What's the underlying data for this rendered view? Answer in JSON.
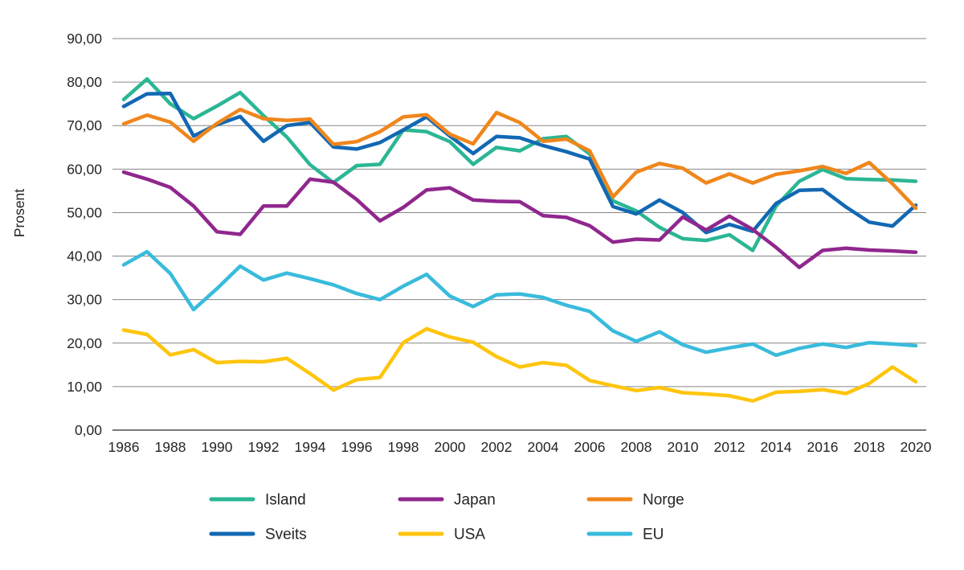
{
  "page": {
    "background_color": "#ffffff",
    "text_color": "#262424",
    "gridline_color": "#868686",
    "baseline_color": "#4f4f4f"
  },
  "chart_data": {
    "type": "line",
    "title": "",
    "xlabel": "",
    "ylabel": "Prosent",
    "ylim": [
      0,
      90
    ],
    "ytick_step": 10,
    "ytick_labels": [
      "0,00",
      "10,00",
      "20,00",
      "30,00",
      "40,00",
      "50,00",
      "60,00",
      "70,00",
      "80,00",
      "90,00"
    ],
    "x": [
      1986,
      1987,
      1988,
      1989,
      1990,
      1991,
      1992,
      1993,
      1994,
      1995,
      1996,
      1997,
      1998,
      1999,
      2000,
      2001,
      2002,
      2003,
      2004,
      2005,
      2006,
      2007,
      2008,
      2009,
      2010,
      2011,
      2012,
      2013,
      2014,
      2015,
      2016,
      2017,
      2018,
      2019,
      2020
    ],
    "x_tick_labels": [
      "1986",
      "1988",
      "1990",
      "1992",
      "1994",
      "1996",
      "1998",
      "2000",
      "2002",
      "2004",
      "2006",
      "2008",
      "2010",
      "2012",
      "2014",
      "2016",
      "2018",
      "2020"
    ],
    "grid": "horizontal",
    "legend_position": "bottom",
    "legend_rows": [
      [
        "Island",
        "Japan",
        "Norge"
      ],
      [
        "Sveits",
        "USA",
        "EU"
      ]
    ],
    "series": [
      {
        "name": "Island",
        "color": "#2BB694",
        "values": [
          76.0,
          80.7,
          75.0,
          71.6,
          74.5,
          77.6,
          72.3,
          67.4,
          61.0,
          56.9,
          60.8,
          61.1,
          69.0,
          68.6,
          66.3,
          61.1,
          65.0,
          64.2,
          67.0,
          67.5,
          63.5,
          52.7,
          50.4,
          46.6,
          44.0,
          43.6,
          44.9,
          41.3,
          51.5,
          57.2,
          59.9,
          57.8,
          57.6,
          57.5,
          57.2
        ]
      },
      {
        "name": "Japan",
        "color": "#90278E",
        "values": [
          59.3,
          57.7,
          55.8,
          51.5,
          45.6,
          45.0,
          51.5,
          51.5,
          57.7,
          57.0,
          53.0,
          48.1,
          51.2,
          55.2,
          55.7,
          52.9,
          52.6,
          52.5,
          49.3,
          48.9,
          47.0,
          43.2,
          43.9,
          43.7,
          49.0,
          46.0,
          49.2,
          46.1,
          42.0,
          37.4,
          41.3,
          41.8,
          41.4,
          41.2,
          40.9
        ]
      },
      {
        "name": "Norge",
        "color": "#F0861C",
        "values": [
          70.4,
          72.4,
          70.8,
          66.4,
          70.5,
          73.7,
          71.6,
          71.2,
          71.5,
          65.7,
          66.3,
          68.6,
          72.0,
          72.5,
          68.0,
          65.8,
          73.0,
          70.7,
          66.4,
          66.9,
          64.2,
          53.6,
          59.3,
          61.3,
          60.2,
          56.8,
          58.9,
          56.8,
          58.8,
          59.6,
          60.6,
          59.0,
          61.5,
          56.6,
          51.0
        ]
      },
      {
        "name": "Sveits",
        "color": "#1268B3",
        "values": [
          74.4,
          77.3,
          77.4,
          67.6,
          70.2,
          72.1,
          66.4,
          70.0,
          70.7,
          65.1,
          64.6,
          66.1,
          69.0,
          72.0,
          67.6,
          63.6,
          67.5,
          67.2,
          65.4,
          64.0,
          62.3,
          51.4,
          49.7,
          52.9,
          50.0,
          45.4,
          47.3,
          45.7,
          52.1,
          55.1,
          55.3,
          51.3,
          47.8,
          46.9,
          51.7
        ]
      },
      {
        "name": "USA",
        "color": "#FEC50D",
        "values": [
          23.0,
          22.0,
          17.3,
          18.5,
          15.5,
          15.8,
          15.7,
          16.5,
          13.0,
          9.2,
          11.6,
          12.1,
          20.1,
          23.3,
          21.4,
          20.2,
          16.9,
          14.5,
          15.5,
          14.9,
          11.4,
          10.2,
          9.1,
          9.8,
          8.6,
          8.3,
          7.9,
          6.7,
          8.7,
          8.9,
          9.3,
          8.4,
          10.7,
          14.5,
          11.1
        ]
      },
      {
        "name": "EU",
        "color": "#39BBDC",
        "values": [
          38.0,
          41.0,
          36.0,
          27.7,
          32.5,
          37.7,
          34.5,
          36.1,
          34.8,
          33.4,
          31.4,
          30.0,
          33.1,
          35.8,
          30.8,
          28.4,
          31.1,
          31.3,
          30.5,
          28.7,
          27.3,
          22.8,
          20.4,
          22.6,
          19.6,
          17.9,
          18.9,
          19.8,
          17.2,
          18.8,
          19.8,
          19.0,
          20.1,
          19.8,
          19.4
        ]
      }
    ]
  }
}
